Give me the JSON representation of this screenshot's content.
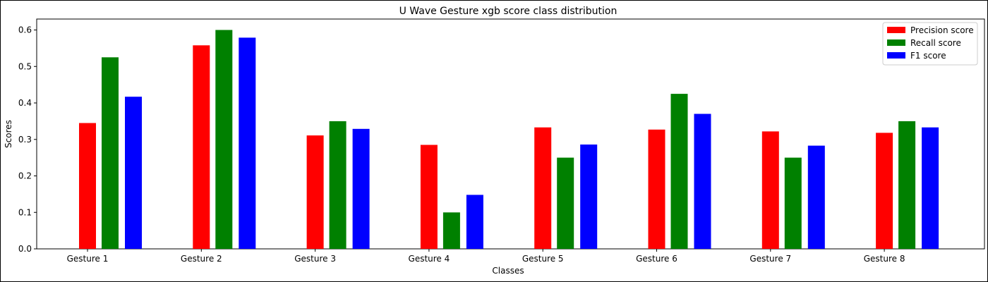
{
  "chart_data": {
    "type": "bar",
    "title": "U Wave Gesture xgb score class distribution",
    "xlabel": "Classes",
    "ylabel": "Scores",
    "ylim": [
      0,
      0.63
    ],
    "yticks": [
      0.0,
      0.1,
      0.2,
      0.3,
      0.4,
      0.5,
      0.6
    ],
    "ytick_labels": [
      "0.0",
      "0.1",
      "0.2",
      "0.3",
      "0.4",
      "0.5",
      "0.6"
    ],
    "grid": false,
    "legend_position": "top-right",
    "categories": [
      "Gesture 1",
      "Gesture 2",
      "Gesture 3",
      "Gesture 4",
      "Gesture 5",
      "Gesture 6",
      "Gesture 7",
      "Gesture 8"
    ],
    "series": [
      {
        "name": "Precision score",
        "color": "#ff0000",
        "values": [
          0.345,
          0.558,
          0.311,
          0.285,
          0.333,
          0.327,
          0.322,
          0.318
        ]
      },
      {
        "name": "Recall score",
        "color": "#008000",
        "values": [
          0.525,
          0.6,
          0.35,
          0.1,
          0.25,
          0.425,
          0.25,
          0.35
        ]
      },
      {
        "name": "F1 score",
        "color": "#0000ff",
        "values": [
          0.417,
          0.579,
          0.329,
          0.148,
          0.286,
          0.37,
          0.283,
          0.333
        ]
      }
    ]
  }
}
